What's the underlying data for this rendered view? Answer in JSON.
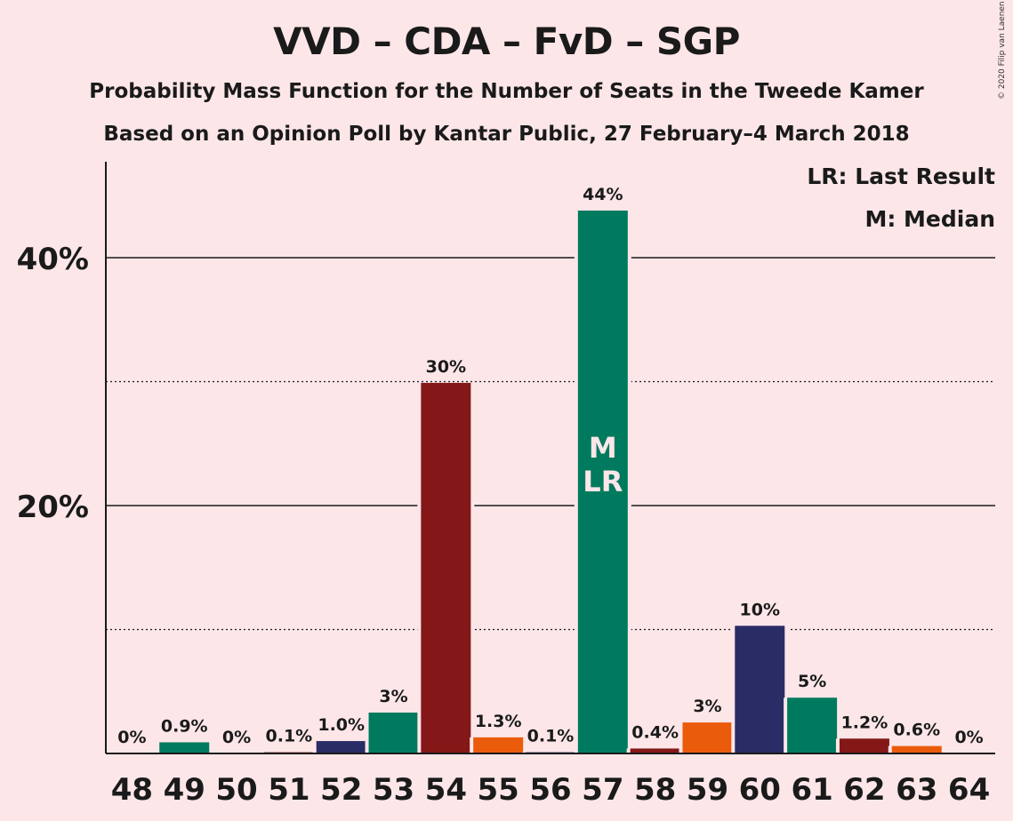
{
  "title": "VVD – CDA – FvD – SGP",
  "subtitle1": "Probability Mass Function for the Number of Seats in the Tweede Kamer",
  "subtitle2": "Based on an Opinion Poll by Kantar Public, 27 February–4 March 2018",
  "copyright": "© 2020 Filip van Laenen",
  "legend": {
    "lr": "LR: Last Result",
    "m": "M: Median"
  },
  "colors": {
    "vvd": "#2a2c66",
    "cda": "#007a5e",
    "fvd": "#841818",
    "sgp": "#ea5b0b"
  },
  "chart_data": {
    "type": "bar",
    "categories": [
      "48",
      "49",
      "50",
      "51",
      "52",
      "53",
      "54",
      "55",
      "56",
      "57",
      "58",
      "59",
      "60",
      "61",
      "62",
      "63",
      "64"
    ],
    "values": [
      0,
      0.9,
      0,
      0.1,
      1.0,
      3.3,
      29.9,
      1.3,
      0.1,
      43.8,
      0.4,
      2.5,
      10.3,
      4.5,
      1.2,
      0.6,
      0
    ],
    "value_labels": [
      "0%",
      "0.9%",
      "0%",
      "0.1%",
      "1.0%",
      "3%",
      "30%",
      "1.3%",
      "0.1%",
      "44%",
      "0.4%",
      "3%",
      "10%",
      "5%",
      "1.2%",
      "0.6%",
      "0%"
    ],
    "bar_colors": [
      "#841818",
      "#007a5e",
      "#ea5b0b",
      "#841818",
      "#2a2c66",
      "#007a5e",
      "#841818",
      "#ea5b0b",
      "#2a2c66",
      "#007a5e",
      "#841818",
      "#ea5b0b",
      "#2a2c66",
      "#007a5e",
      "#841818",
      "#ea5b0b",
      "#2a2c66"
    ],
    "ylim": [
      0,
      47
    ],
    "yticks": [
      20,
      40
    ],
    "ytick_labels": [
      "20%",
      "40%"
    ],
    "minor_gridlines": [
      10,
      30
    ],
    "markers": {
      "57": "M\nLR"
    },
    "marker_lines": [
      "M",
      "LR"
    ]
  }
}
